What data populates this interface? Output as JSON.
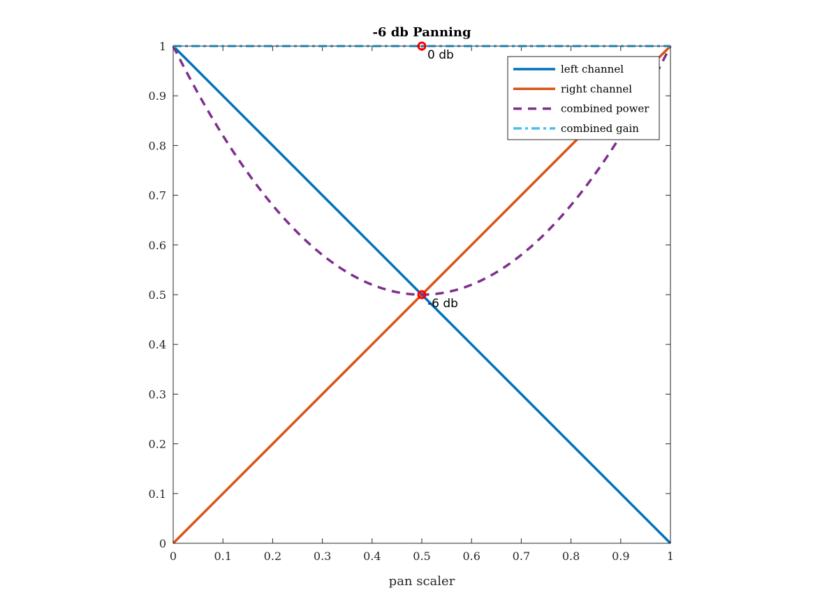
{
  "chart_data": {
    "type": "line",
    "title": "-6 db Panning",
    "xlabel": "pan scaler",
    "ylabel": "",
    "xlim": [
      0,
      1
    ],
    "ylim": [
      0,
      1
    ],
    "xticks": [
      "0",
      "0.1",
      "0.2",
      "0.3",
      "0.4",
      "0.5",
      "0.6",
      "0.7",
      "0.8",
      "0.9",
      "1"
    ],
    "yticks": [
      "0",
      "0.1",
      "0.2",
      "0.3",
      "0.4",
      "0.5",
      "0.6",
      "0.7",
      "0.8",
      "0.9",
      "1"
    ],
    "grid": false,
    "legend_position": "top-right",
    "x": [
      0,
      0.1,
      0.2,
      0.3,
      0.4,
      0.5,
      0.6,
      0.7,
      0.8,
      0.9,
      1
    ],
    "series": [
      {
        "name": "left channel",
        "color": "#0072BD",
        "style": "solid",
        "values": [
          1,
          0.9,
          0.8,
          0.7,
          0.6,
          0.5,
          0.4,
          0.3,
          0.2,
          0.1,
          0
        ]
      },
      {
        "name": "right channel",
        "color": "#D95319",
        "style": "solid",
        "values": [
          0,
          0.1,
          0.2,
          0.3,
          0.4,
          0.5,
          0.6,
          0.7,
          0.8,
          0.9,
          1
        ]
      },
      {
        "name": "combined power",
        "color": "#7E2F8E",
        "style": "dashed",
        "values": [
          1,
          0.82,
          0.68,
          0.58,
          0.52,
          0.5,
          0.52,
          0.58,
          0.68,
          0.82,
          1
        ]
      },
      {
        "name": "combined gain",
        "color": "#4DBEEE",
        "style": "dashdot",
        "values": [
          1,
          1,
          1,
          1,
          1,
          1,
          1,
          1,
          1,
          1,
          1
        ]
      }
    ],
    "annotations": [
      {
        "x": 0.5,
        "y": 1,
        "text": "0 db",
        "marker": "circle",
        "color": "#FF0000"
      },
      {
        "x": 0.5,
        "y": 0.5,
        "text": "-6 db",
        "marker": "circle",
        "color": "#FF0000"
      }
    ]
  }
}
